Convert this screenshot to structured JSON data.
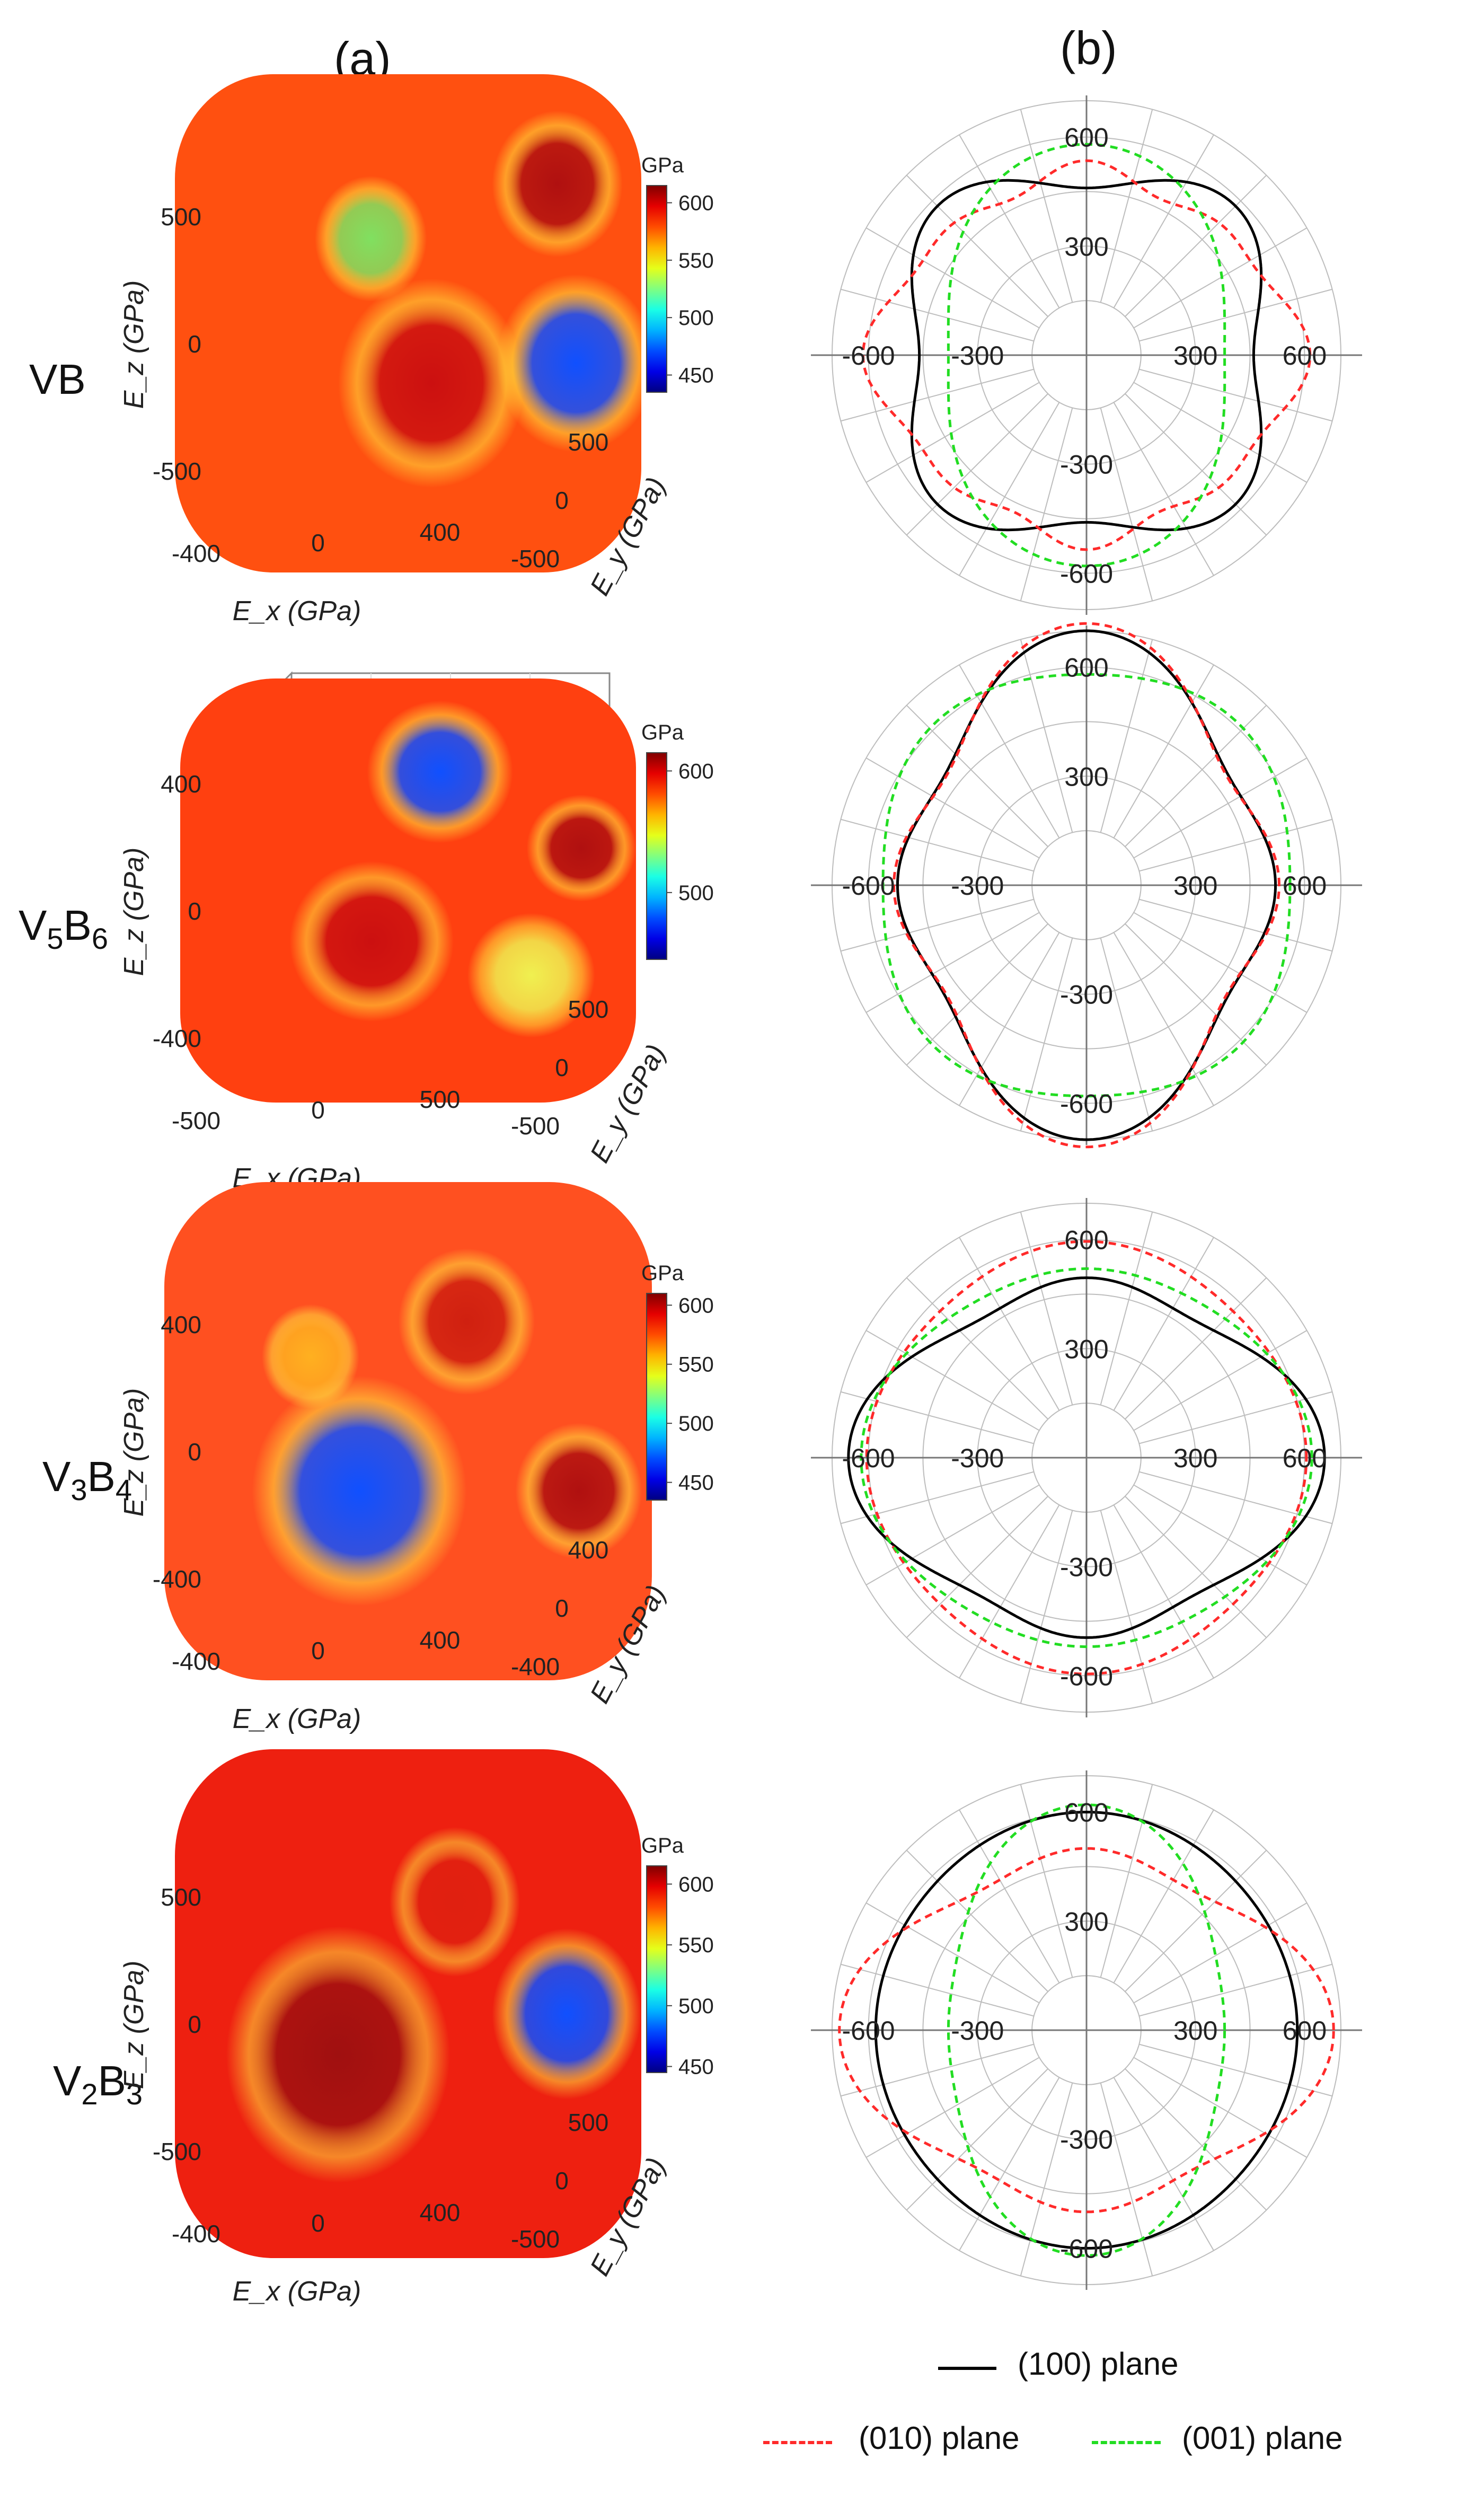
{
  "header": {
    "col_a": "(a)",
    "col_b": "(b)"
  },
  "rows": [
    {
      "base": "VB",
      "subs": []
    },
    {
      "base": "V",
      "subs": [
        "5",
        "6"
      ],
      "mid": "B"
    },
    {
      "base": "V",
      "subs": [
        "3",
        "4"
      ],
      "mid": "B"
    },
    {
      "base": "V",
      "subs": [
        "2",
        "3"
      ],
      "mid": "B"
    }
  ],
  "row_labels": [
    "VB",
    "V5B6",
    "V3B4",
    "V2B3"
  ],
  "colors": {
    "plane100": "#000000",
    "plane010": "#ff2a2a",
    "plane001": "#22dd22",
    "grid": "#bdbdbd",
    "axis": "#777777"
  },
  "chart_data": [
    {
      "type": "surface3d",
      "material": "VB",
      "zlabel": "E_z (GPa)",
      "xlabel": "E_x (GPa)",
      "ylabel": "E_y (GPa)",
      "z_ticks": [
        "500",
        "0",
        "-500"
      ],
      "x_ticks": [
        "-400",
        "0",
        "400"
      ],
      "y_ticks": [
        "500",
        "0",
        "-500"
      ],
      "colorbar": {
        "unit": "GPa",
        "ticks": [
          600,
          550,
          500,
          450
        ],
        "range": [
          435,
          615
        ]
      }
    },
    {
      "type": "surface3d",
      "material": "V5B6",
      "zlabel": "E_z (GPa)",
      "xlabel": "E_x (GPa)",
      "ylabel": "E_y (GPa)",
      "z_ticks": [
        "400",
        "0",
        "-400"
      ],
      "x_ticks": [
        "-500",
        "0",
        "500"
      ],
      "y_ticks": [
        "500",
        "0",
        "-500"
      ],
      "colorbar": {
        "unit": "GPa",
        "ticks": [
          600,
          500
        ],
        "range": [
          445,
          615
        ]
      }
    },
    {
      "type": "surface3d",
      "material": "V3B4",
      "zlabel": "E_z (GPa)",
      "xlabel": "E_x (GPa)",
      "ylabel": "E_y (GPa)",
      "z_ticks": [
        "400",
        "0",
        "-400"
      ],
      "x_ticks": [
        "-400",
        "0",
        "400"
      ],
      "y_ticks": [
        "400",
        "0",
        "-400"
      ],
      "colorbar": {
        "unit": "GPa",
        "ticks": [
          600,
          550,
          500,
          450
        ],
        "range": [
          435,
          610
        ]
      }
    },
    {
      "type": "surface3d",
      "material": "V2B3",
      "zlabel": "E_z (GPa)",
      "xlabel": "E_x (GPa)",
      "ylabel": "E_y (GPa)",
      "z_ticks": [
        "500",
        "0",
        "-500"
      ],
      "x_ticks": [
        "-400",
        "0",
        "400"
      ],
      "y_ticks": [
        "500",
        "0",
        "-500"
      ],
      "colorbar": {
        "unit": "GPa",
        "ticks": [
          600,
          550,
          500,
          450
        ],
        "range": [
          445,
          615
        ]
      }
    },
    {
      "type": "polar",
      "material": "VB",
      "r_max": 700,
      "r_ticks": [
        300,
        600
      ],
      "axis_labels": {
        "left": [
          "-600",
          "-300"
        ],
        "right": [
          "300",
          "600"
        ],
        "top": [
          "300",
          "600"
        ],
        "bottom": [
          "-300",
          "-600"
        ]
      },
      "series": [
        {
          "name": "(100) plane",
          "style": "solid",
          "color": "#000000",
          "r0": 520,
          "a4": -60,
          "a8": 0
        },
        {
          "name": "(010) plane",
          "style": "dashed",
          "color": "#ff2a2a",
          "r0": 525,
          "a2": 40,
          "a4": 30,
          "a8": 20
        },
        {
          "name": "(001) plane",
          "style": "dashed",
          "color": "#22dd22",
          "r0": 480,
          "a2": -100,
          "a4": 0,
          "a8": 0
        }
      ]
    },
    {
      "type": "polar",
      "material": "V5B6",
      "r_max": 700,
      "r_ticks": [
        300,
        600
      ],
      "axis_labels": {
        "left": [
          "-600",
          "-300"
        ],
        "right": [
          "300",
          "600"
        ],
        "top": [
          "300",
          "600"
        ],
        "bottom": [
          "-300",
          "-600"
        ]
      },
      "series": [
        {
          "name": "(100) plane",
          "style": "solid",
          "color": "#000000",
          "r0": 560,
          "a2": -90,
          "a4": 50,
          "a8": 0
        },
        {
          "name": "(010) plane",
          "style": "dashed",
          "color": "#ff2a2a",
          "r0": 565,
          "a2": -95,
          "a4": 60,
          "a8": 0
        },
        {
          "name": "(001) plane",
          "style": "dashed",
          "color": "#22dd22",
          "r0": 590,
          "a2": -10,
          "a4": -20,
          "a8": 0
        }
      ]
    },
    {
      "type": "polar",
      "material": "V3B4",
      "r_max": 700,
      "r_ticks": [
        300,
        600
      ],
      "axis_labels": {
        "left": [
          "-600",
          "-300"
        ],
        "right": [
          "300",
          "600"
        ],
        "top": [
          "300",
          "600"
        ],
        "bottom": [
          "-300",
          "-600"
        ]
      },
      "series": [
        {
          "name": "(100) plane",
          "style": "solid",
          "color": "#000000",
          "r0": 535,
          "a2": 80,
          "a4": 40,
          "a8": 0
        },
        {
          "name": "(010) plane",
          "style": "dashed",
          "color": "#ff2a2a",
          "r0": 585,
          "a2": 5,
          "a4": 15,
          "a8": 0
        },
        {
          "name": "(001) plane",
          "style": "dashed",
          "color": "#22dd22",
          "r0": 555,
          "a2": 50,
          "a4": 15,
          "a8": 0
        }
      ]
    },
    {
      "type": "polar",
      "material": "V2B3",
      "r_max": 700,
      "r_ticks": [
        300,
        600
      ],
      "axis_labels": {
        "left": [
          "-600",
          "-300"
        ],
        "right": [
          "300",
          "600"
        ],
        "top": [
          "300",
          "600"
        ],
        "bottom": [
          "-300",
          "-600"
        ]
      },
      "series": [
        {
          "name": "(100) plane",
          "style": "solid",
          "color": "#000000",
          "r0": 585,
          "a2": -10,
          "a4": 5,
          "a8": 0
        },
        {
          "name": "(010) plane",
          "style": "dashed",
          "color": "#ff2a2a",
          "r0": 545,
          "a2": 90,
          "a4": 45,
          "a8": 0
        },
        {
          "name": "(001) plane",
          "style": "dashed",
          "color": "#22dd22",
          "r0": 480,
          "a2": -120,
          "a4": 20,
          "a8": 0
        }
      ]
    }
  ],
  "legend": {
    "items": [
      {
        "label": "(100) plane",
        "style": "solid",
        "color": "#000000"
      },
      {
        "label": "(010) plane",
        "style": "dashed",
        "color": "#ff2a2a"
      },
      {
        "label": "(001) plane",
        "style": "dashed",
        "color": "#22dd22"
      }
    ]
  }
}
